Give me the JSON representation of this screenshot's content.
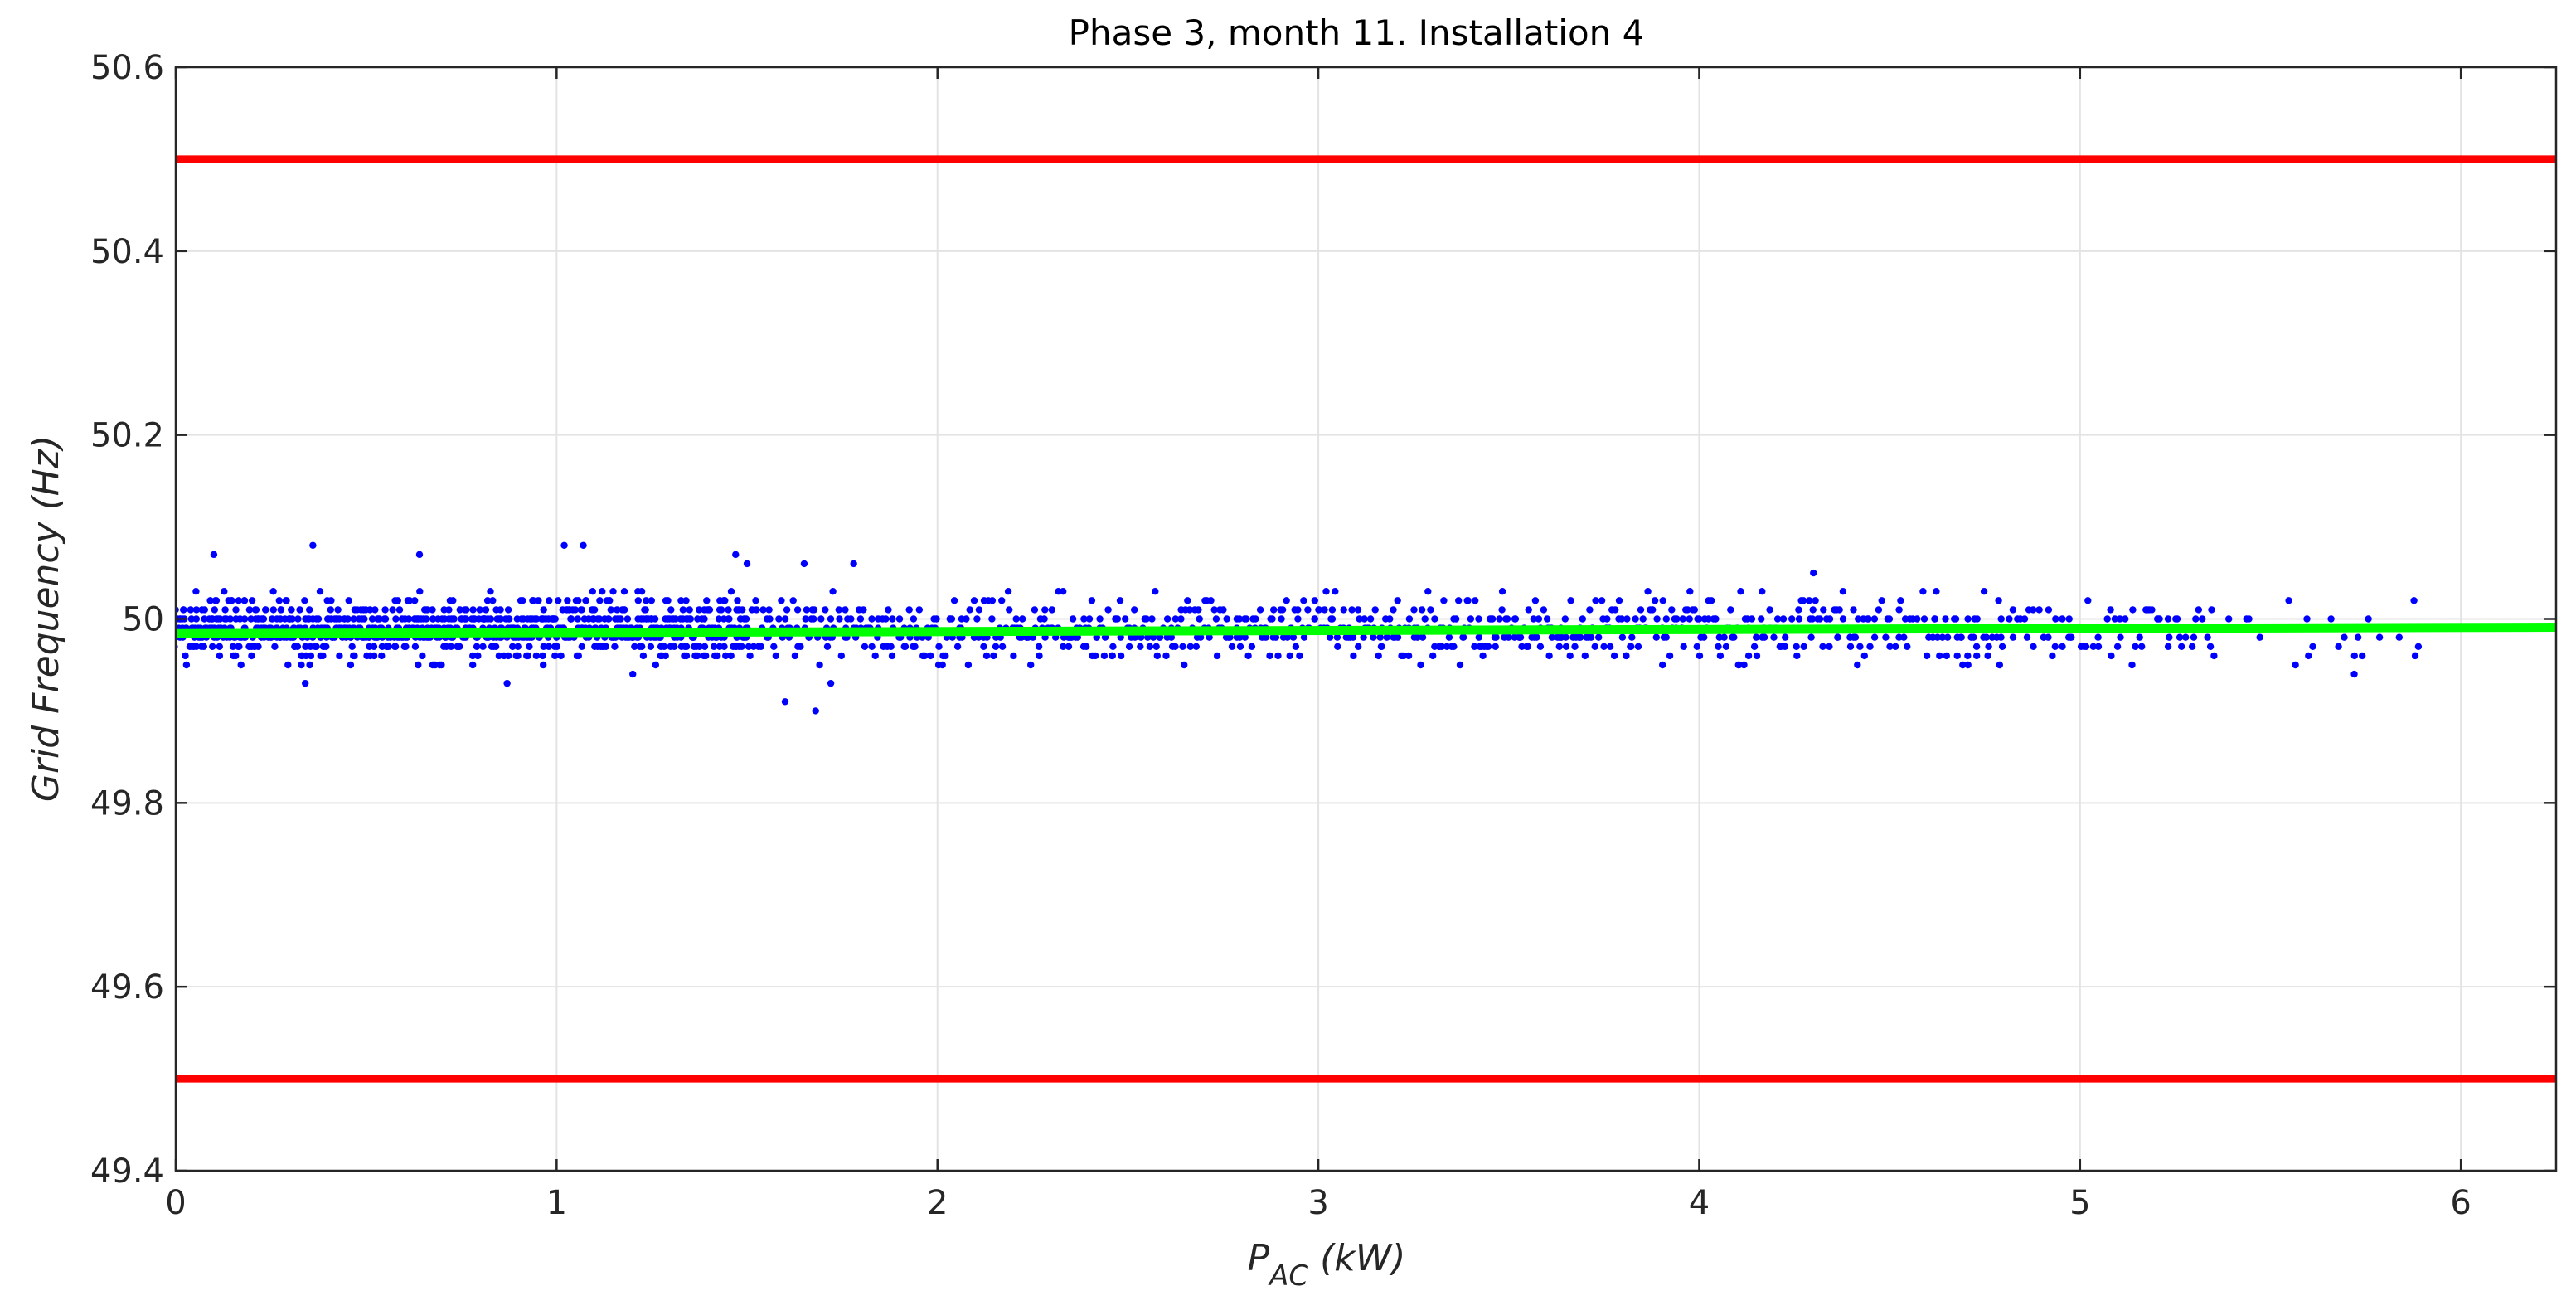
{
  "chart_data": {
    "type": "scatter",
    "title": "Phase 3, month 11. Installation 4",
    "xlabel_main": "P",
    "xlabel_sub": "AC",
    "xlabel_unit": " (kW)",
    "ylabel": "Grid Frequency (Hz)",
    "xlim": [
      0,
      6.25
    ],
    "ylim": [
      49.4,
      50.6
    ],
    "xticks": [
      0,
      1,
      2,
      3,
      4,
      5,
      6
    ],
    "yticks": [
      49.4,
      49.6,
      49.8,
      50.0,
      50.2,
      50.4,
      50.6
    ],
    "xtick_labels": [
      "0",
      "1",
      "2",
      "3",
      "4",
      "5",
      "6"
    ],
    "ytick_labels": [
      "49.4",
      "49.6",
      "49.8",
      "50",
      "50.2",
      "50.4",
      "50.6"
    ],
    "grid": true,
    "limit_lines": [
      {
        "name": "upper-limit",
        "y": 50.5,
        "color": "#ff0000"
      },
      {
        "name": "lower-limit",
        "y": 49.5,
        "color": "#ff0000"
      }
    ],
    "trend_line": {
      "name": "fit",
      "x": [
        0,
        6.25
      ],
      "y": [
        49.984,
        49.991
      ],
      "color": "#00ff00"
    },
    "series": [
      {
        "name": "measurements",
        "color": "#0000ff",
        "band_min": 49.94,
        "band_max": 50.04,
        "x_range": [
          0,
          5.9
        ],
        "resolution": 0.01,
        "outliers": [
          {
            "x": 0.1,
            "y": 50.07
          },
          {
            "x": 0.36,
            "y": 50.08
          },
          {
            "x": 0.64,
            "y": 50.07
          },
          {
            "x": 1.02,
            "y": 50.08
          },
          {
            "x": 1.07,
            "y": 50.08
          },
          {
            "x": 1.47,
            "y": 50.07
          },
          {
            "x": 1.5,
            "y": 50.06
          },
          {
            "x": 1.65,
            "y": 50.06
          },
          {
            "x": 1.78,
            "y": 50.06
          },
          {
            "x": 0.34,
            "y": 49.93
          },
          {
            "x": 0.87,
            "y": 49.93
          },
          {
            "x": 1.6,
            "y": 49.91
          },
          {
            "x": 1.68,
            "y": 49.9
          },
          {
            "x": 1.72,
            "y": 49.93
          },
          {
            "x": 1.2,
            "y": 49.94
          },
          {
            "x": 4.3,
            "y": 50.05
          },
          {
            "x": 5.72,
            "y": 49.94
          },
          {
            "x": 5.88,
            "y": 49.96
          }
        ]
      }
    ]
  }
}
